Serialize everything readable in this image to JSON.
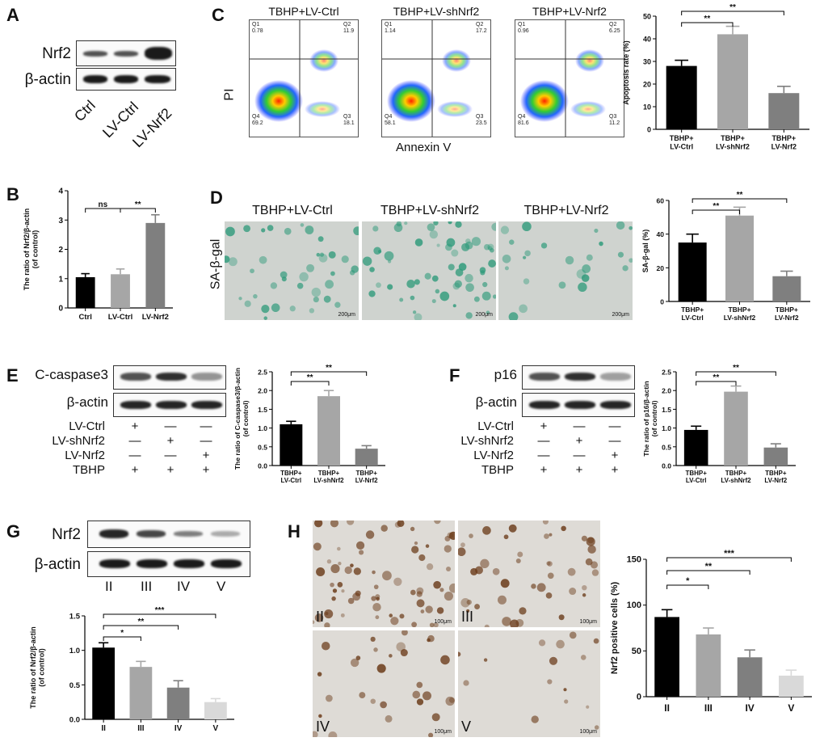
{
  "panels": {
    "A": {
      "letter": "A",
      "rows": [
        "Nrf2",
        "β-actin"
      ],
      "lanes": [
        "Ctrl",
        "LV-Ctrl",
        "LV-Nrf2"
      ],
      "intensity": [
        0.55,
        0.55,
        1.0
      ]
    },
    "B": {
      "letter": "B",
      "sig": [
        "ns",
        "**"
      ],
      "chart_data": {
        "type": "bar",
        "categories": [
          "Ctrl",
          "LV-Ctrl",
          "LV-Nrf2"
        ],
        "values": [
          1.05,
          1.15,
          2.9
        ],
        "errors": [
          0.12,
          0.18,
          0.28
        ],
        "ylabel": "The ratio of Nrf2/β-actin\n(of control)",
        "ylim": [
          0,
          4
        ],
        "yticks": [
          "0",
          "1",
          "2",
          "3",
          "4"
        ],
        "colors": [
          "#000000",
          "#a6a6a6",
          "#7f7f7f"
        ]
      }
    },
    "C": {
      "letter": "C",
      "flow": [
        {
          "title": "TBHP+LV-Ctrl",
          "q1": "Q1\n0.78",
          "q2": "Q2\n11.9",
          "q3": "Q3\n18.1",
          "q4": "Q4\n69.2"
        },
        {
          "title": "TBHP+LV-shNrf2",
          "q1": "Q1\n1.14",
          "q2": "Q2\n17.2",
          "q3": "Q3\n23.5",
          "q4": "Q4\n58.1"
        },
        {
          "title": "TBHP+LV-Nrf2",
          "q1": "Q1\n0.96",
          "q2": "Q2\n6.25",
          "q3": "Q3\n11.2",
          "q4": "Q4\n81.6"
        }
      ],
      "xaxis": "Annexin V",
      "yaxis": "PI",
      "sig": [
        "**",
        "**"
      ],
      "chart_data": {
        "type": "bar",
        "categories": [
          "TBHP+\nLV-Ctrl",
          "TBHP+\nLV-shNrf2",
          "TBHP+\nLV-Nrf2"
        ],
        "values": [
          28,
          42,
          16
        ],
        "errors": [
          2.5,
          3.5,
          3
        ],
        "ylabel": "Apoptosis rate (%)",
        "ylim": [
          0,
          50
        ],
        "yticks": [
          "0",
          "10",
          "20",
          "30",
          "40",
          "50"
        ],
        "colors": [
          "#000000",
          "#a6a6a6",
          "#7f7f7f"
        ]
      }
    },
    "D": {
      "letter": "D",
      "ylabel_side": "SA-β-gal",
      "images": [
        "TBHP+LV-Ctrl",
        "TBHP+LV-shNrf2",
        "TBHP+LV-Nrf2"
      ],
      "scale": "200μm",
      "sig": [
        "**",
        "**"
      ],
      "chart_data": {
        "type": "bar",
        "categories": [
          "TBHP+\nLV-Ctrl",
          "TBHP+\nLV-shNrf2",
          "TBHP+\nLV-Nrf2"
        ],
        "values": [
          35,
          51,
          15
        ],
        "errors": [
          5,
          5,
          3
        ],
        "ylabel": "SA-β-gal (%)",
        "ylim": [
          0,
          60
        ],
        "yticks": [
          "0",
          "20",
          "40",
          "60"
        ],
        "colors": [
          "#000000",
          "#a6a6a6",
          "#7f7f7f"
        ]
      }
    },
    "E": {
      "letter": "E",
      "rows": [
        "C-caspase3",
        "β-actin"
      ],
      "conds": [
        {
          "label": "LV-Ctrl",
          "marks": [
            "+",
            "—",
            "—"
          ]
        },
        {
          "label": "LV-shNrf2",
          "marks": [
            "—",
            "+",
            "—"
          ]
        },
        {
          "label": "LV-Nrf2",
          "marks": [
            "—",
            "—",
            "+"
          ]
        },
        {
          "label": "TBHP",
          "marks": [
            "+",
            "+",
            "+"
          ]
        }
      ],
      "intensity": [
        0.75,
        0.9,
        0.45
      ],
      "sig": [
        "**",
        "**"
      ],
      "chart_data": {
        "type": "bar",
        "categories": [
          "TBHP+\nLV-Ctrl",
          "TBHP+\nLV-shNrf2",
          "TBHP+\nLV-Nrf2"
        ],
        "values": [
          1.1,
          1.85,
          0.45
        ],
        "errors": [
          0.08,
          0.15,
          0.08
        ],
        "ylabel": "The ratio of C-caspase3/β-actin\n(of control)",
        "ylim": [
          0,
          2.5
        ],
        "yticks": [
          "0.0",
          "0.5",
          "1.0",
          "1.5",
          "2.0",
          "2.5"
        ],
        "colors": [
          "#000000",
          "#a6a6a6",
          "#7f7f7f"
        ]
      }
    },
    "F": {
      "letter": "F",
      "rows": [
        "p16",
        "β-actin"
      ],
      "conds": [
        {
          "label": "LV-Ctrl",
          "marks": [
            "+",
            "—",
            "—"
          ]
        },
        {
          "label": "LV-shNrf2",
          "marks": [
            "—",
            "+",
            "—"
          ]
        },
        {
          "label": "LV-Nrf2",
          "marks": [
            "—",
            "—",
            "+"
          ]
        },
        {
          "label": "TBHP",
          "marks": [
            "+",
            "+",
            "+"
          ]
        }
      ],
      "intensity": [
        0.75,
        0.9,
        0.4
      ],
      "sig": [
        "**",
        "**"
      ],
      "chart_data": {
        "type": "bar",
        "categories": [
          "TBHP+\nLV-Ctrl",
          "TBHP+\nLV-shNrf2",
          "TBHP+\nLV-Nrf2"
        ],
        "values": [
          0.95,
          1.97,
          0.48
        ],
        "errors": [
          0.1,
          0.15,
          0.1
        ],
        "ylabel": "The ratio of p16/β-actin\n(of control)",
        "ylim": [
          0,
          2.5
        ],
        "yticks": [
          "0.0",
          "0.5",
          "1.0",
          "1.5",
          "2.0",
          "2.5"
        ],
        "colors": [
          "#000000",
          "#a6a6a6",
          "#7f7f7f"
        ]
      }
    },
    "G": {
      "letter": "G",
      "rows": [
        "Nrf2",
        "β-actin"
      ],
      "lanes": [
        "II",
        "III",
        "IV",
        "V"
      ],
      "intensity": [
        0.9,
        0.75,
        0.5,
        0.35
      ],
      "sig": [
        "*",
        "**",
        "***"
      ],
      "chart_data": {
        "type": "bar",
        "categories": [
          "II",
          "III",
          "IV",
          "V"
        ],
        "values": [
          1.04,
          0.76,
          0.46,
          0.25
        ],
        "errors": [
          0.07,
          0.08,
          0.1,
          0.05
        ],
        "ylabel": "The ratio of Nrf2/β-actin\n(of control)",
        "ylim": [
          0,
          1.5
        ],
        "yticks": [
          "0.0",
          "0.5",
          "1.0",
          "1.5"
        ],
        "colors": [
          "#000000",
          "#a6a6a6",
          "#7f7f7f",
          "#d9d9d9"
        ]
      }
    },
    "H": {
      "letter": "H",
      "images": [
        "II",
        "III",
        "IV",
        "V"
      ],
      "scale": "100μm",
      "sig": [
        "*",
        "**",
        "***"
      ],
      "chart_data": {
        "type": "bar",
        "categories": [
          "II",
          "III",
          "IV",
          "V"
        ],
        "values": [
          87,
          68,
          43,
          23
        ],
        "errors": [
          8,
          7,
          8,
          6
        ],
        "ylabel": "Nrf2 positive cells (%)",
        "ylim": [
          0,
          150
        ],
        "yticks": [
          "0",
          "50",
          "100",
          "150"
        ],
        "colors": [
          "#000000",
          "#a6a6a6",
          "#7f7f7f",
          "#d9d9d9"
        ]
      }
    }
  }
}
